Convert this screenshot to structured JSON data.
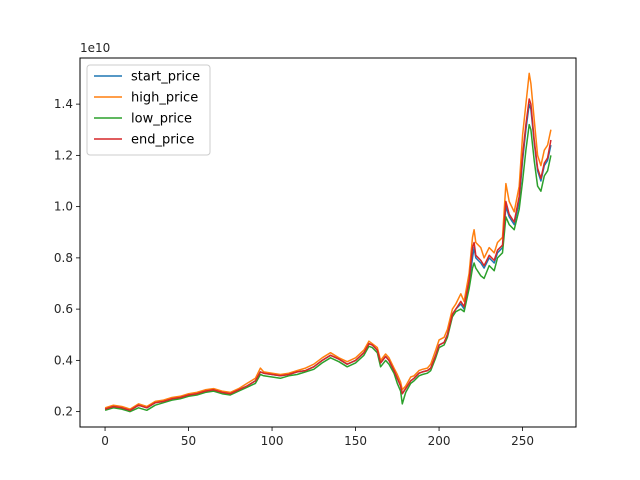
{
  "chart_data": {
    "type": "line",
    "title": "",
    "xlabel": "",
    "ylabel": "",
    "y_offset_label": "1e10",
    "xlim": [
      -15,
      282
    ],
    "ylim": [
      0.14,
      1.58
    ],
    "y_scale_factor": 10000000000,
    "xticks": [
      0,
      50,
      100,
      150,
      200,
      250
    ],
    "yticks": [
      0.2,
      0.4,
      0.6,
      0.8,
      1.0,
      1.2,
      1.4
    ],
    "ytick_labels": [
      "0.2",
      "0.4",
      "0.6",
      "0.8",
      "1.0",
      "1.2",
      "1.4"
    ],
    "grid": false,
    "legend_position": "upper-left",
    "x": [
      0,
      5,
      10,
      15,
      20,
      25,
      30,
      35,
      40,
      45,
      50,
      55,
      60,
      65,
      70,
      75,
      80,
      85,
      90,
      93,
      95,
      100,
      105,
      110,
      115,
      120,
      125,
      130,
      135,
      140,
      145,
      150,
      155,
      158,
      160,
      163,
      165,
      168,
      170,
      173,
      175,
      177,
      178,
      180,
      183,
      185,
      188,
      190,
      193,
      195,
      198,
      200,
      203,
      205,
      208,
      210,
      213,
      215,
      218,
      220,
      221,
      222,
      225,
      227,
      230,
      233,
      235,
      238,
      240,
      242,
      245,
      248,
      250,
      252,
      254,
      255,
      257,
      259,
      261,
      263,
      265,
      267
    ],
    "series": [
      {
        "name": "start_price",
        "color": "#1f77b4",
        "values": [
          0.21,
          0.22,
          0.215,
          0.205,
          0.225,
          0.215,
          0.235,
          0.24,
          0.25,
          0.255,
          0.265,
          0.27,
          0.28,
          0.285,
          0.275,
          0.27,
          0.285,
          0.3,
          0.32,
          0.355,
          0.35,
          0.345,
          0.34,
          0.345,
          0.355,
          0.36,
          0.375,
          0.4,
          0.42,
          0.405,
          0.385,
          0.4,
          0.43,
          0.465,
          0.46,
          0.44,
          0.39,
          0.415,
          0.4,
          0.36,
          0.33,
          0.3,
          0.27,
          0.29,
          0.32,
          0.33,
          0.35,
          0.355,
          0.36,
          0.37,
          0.42,
          0.46,
          0.47,
          0.5,
          0.58,
          0.6,
          0.62,
          0.6,
          0.7,
          0.8,
          0.84,
          0.8,
          0.78,
          0.76,
          0.8,
          0.78,
          0.82,
          0.84,
          1.0,
          0.96,
          0.93,
          1.02,
          1.18,
          1.3,
          1.4,
          1.38,
          1.25,
          1.14,
          1.1,
          1.16,
          1.18,
          1.24
        ]
      },
      {
        "name": "high_price",
        "color": "#ff7f0e",
        "values": [
          0.215,
          0.225,
          0.22,
          0.21,
          0.23,
          0.22,
          0.24,
          0.245,
          0.255,
          0.26,
          0.27,
          0.275,
          0.285,
          0.29,
          0.28,
          0.275,
          0.29,
          0.31,
          0.33,
          0.37,
          0.355,
          0.35,
          0.345,
          0.35,
          0.36,
          0.37,
          0.385,
          0.41,
          0.43,
          0.41,
          0.395,
          0.41,
          0.44,
          0.475,
          0.465,
          0.45,
          0.4,
          0.425,
          0.41,
          0.37,
          0.345,
          0.315,
          0.285,
          0.3,
          0.335,
          0.34,
          0.36,
          0.365,
          0.37,
          0.385,
          0.44,
          0.48,
          0.49,
          0.52,
          0.6,
          0.62,
          0.66,
          0.63,
          0.74,
          0.88,
          0.91,
          0.86,
          0.84,
          0.8,
          0.84,
          0.82,
          0.86,
          0.88,
          1.09,
          1.02,
          0.98,
          1.08,
          1.28,
          1.4,
          1.52,
          1.48,
          1.34,
          1.2,
          1.16,
          1.22,
          1.24,
          1.3
        ]
      },
      {
        "name": "low_price",
        "color": "#2ca02c",
        "values": [
          0.205,
          0.215,
          0.21,
          0.2,
          0.215,
          0.205,
          0.225,
          0.235,
          0.245,
          0.25,
          0.26,
          0.265,
          0.275,
          0.28,
          0.27,
          0.265,
          0.28,
          0.295,
          0.31,
          0.345,
          0.34,
          0.335,
          0.33,
          0.34,
          0.345,
          0.355,
          0.365,
          0.39,
          0.41,
          0.395,
          0.375,
          0.39,
          0.42,
          0.455,
          0.45,
          0.43,
          0.375,
          0.4,
          0.385,
          0.35,
          0.31,
          0.28,
          0.23,
          0.275,
          0.31,
          0.32,
          0.34,
          0.345,
          0.35,
          0.36,
          0.41,
          0.45,
          0.46,
          0.49,
          0.57,
          0.59,
          0.6,
          0.59,
          0.68,
          0.76,
          0.78,
          0.76,
          0.73,
          0.72,
          0.77,
          0.75,
          0.8,
          0.82,
          0.96,
          0.93,
          0.91,
          0.99,
          1.1,
          1.22,
          1.32,
          1.3,
          1.18,
          1.08,
          1.06,
          1.12,
          1.14,
          1.2
        ]
      },
      {
        "name": "end_price",
        "color": "#d62728",
        "values": [
          0.21,
          0.22,
          0.215,
          0.205,
          0.225,
          0.215,
          0.235,
          0.24,
          0.25,
          0.255,
          0.265,
          0.27,
          0.28,
          0.285,
          0.275,
          0.27,
          0.285,
          0.3,
          0.32,
          0.355,
          0.35,
          0.345,
          0.34,
          0.345,
          0.355,
          0.36,
          0.375,
          0.4,
          0.42,
          0.405,
          0.385,
          0.4,
          0.43,
          0.465,
          0.46,
          0.44,
          0.39,
          0.415,
          0.4,
          0.36,
          0.33,
          0.3,
          0.27,
          0.29,
          0.32,
          0.33,
          0.35,
          0.355,
          0.36,
          0.37,
          0.42,
          0.46,
          0.47,
          0.5,
          0.58,
          0.6,
          0.63,
          0.61,
          0.71,
          0.84,
          0.86,
          0.81,
          0.79,
          0.77,
          0.81,
          0.79,
          0.83,
          0.85,
          1.02,
          0.97,
          0.94,
          1.04,
          1.2,
          1.32,
          1.42,
          1.4,
          1.26,
          1.15,
          1.11,
          1.17,
          1.19,
          1.26
        ]
      }
    ]
  }
}
